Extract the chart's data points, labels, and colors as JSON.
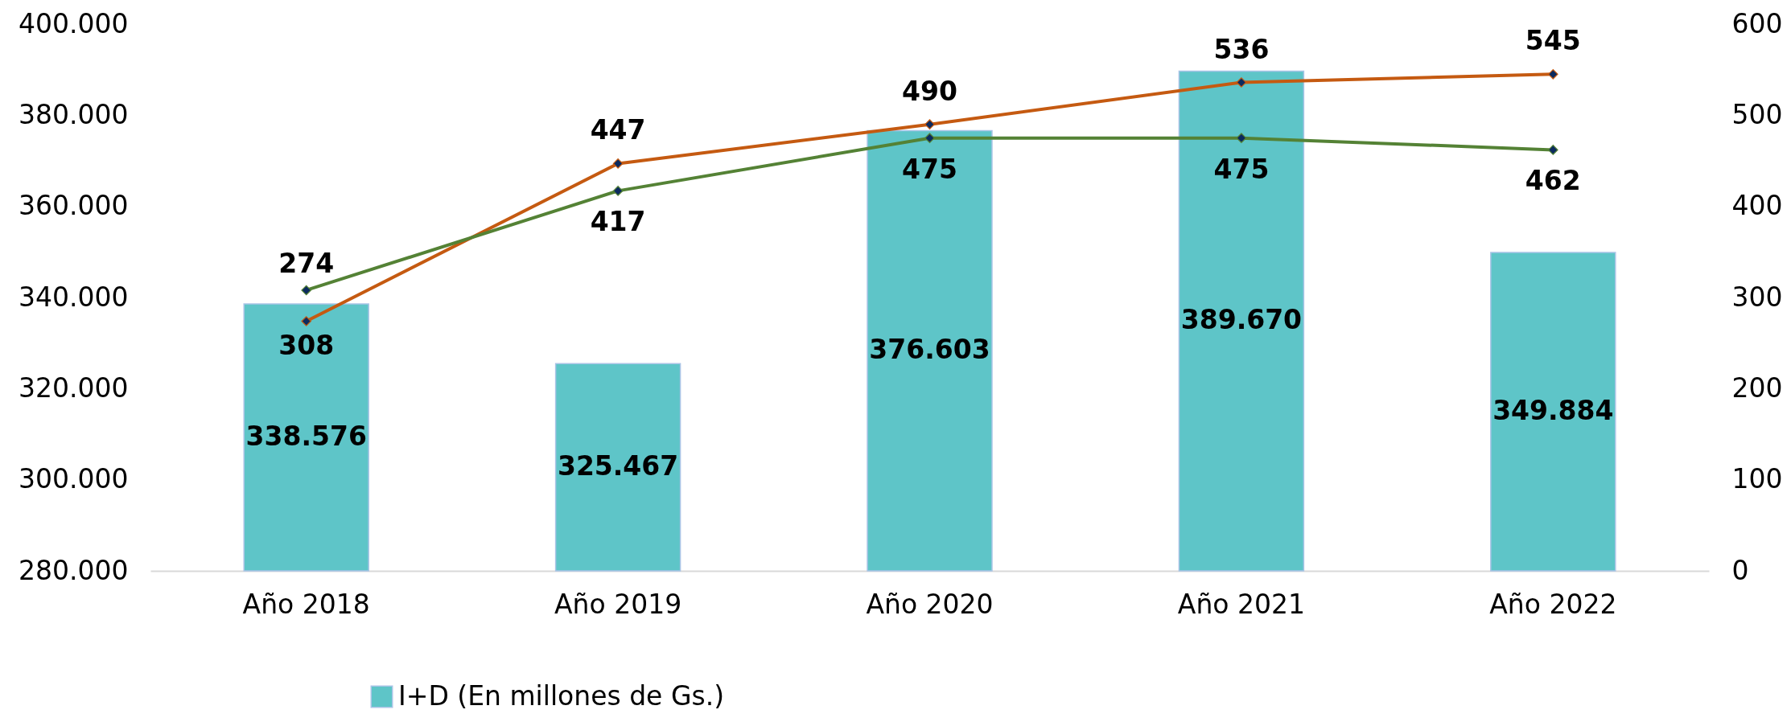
{
  "chart_data": {
    "type": "bar",
    "categories": [
      "Año 2018",
      "Año 2019",
      "Año 2020",
      "Año 2021",
      "Año 2022"
    ],
    "ylim": [
      280000,
      400000
    ],
    "yticks": [
      {
        "value": 280000,
        "label": "280.000"
      },
      {
        "value": 300000,
        "label": "300.000"
      },
      {
        "value": 320000,
        "label": "320.000"
      },
      {
        "value": 340000,
        "label": "340.000"
      },
      {
        "value": 360000,
        "label": "360.000"
      },
      {
        "value": 380000,
        "label": "380.000"
      },
      {
        "value": 400000,
        "label": "400.000"
      }
    ],
    "y2lim": [
      0,
      600
    ],
    "y2ticks": [
      0,
      100,
      200,
      300,
      400,
      500,
      600
    ],
    "series": [
      {
        "name": "I+D (En millones de Gs.)",
        "color": "#5EC5C8",
        "values": [
          338576,
          325467,
          376603,
          389670,
          349884
        ],
        "value_labels": [
          "338.576",
          "325.467",
          "376.603",
          "389.670",
          "349.884"
        ]
      },
      {
        "type": "line",
        "axis": "y2",
        "color": "#C55A11",
        "values": [
          274,
          447,
          490,
          536,
          545
        ],
        "value_labels": [
          "274",
          "447",
          "490",
          "536",
          "545"
        ]
      },
      {
        "type": "line",
        "axis": "y2",
        "color": "#548235",
        "values": [
          308,
          417,
          475,
          475,
          462
        ],
        "value_labels": [
          "308",
          "417",
          "475",
          "475",
          "462"
        ]
      }
    ],
    "marker": "diamond",
    "legend": "bottom",
    "grid": false
  }
}
